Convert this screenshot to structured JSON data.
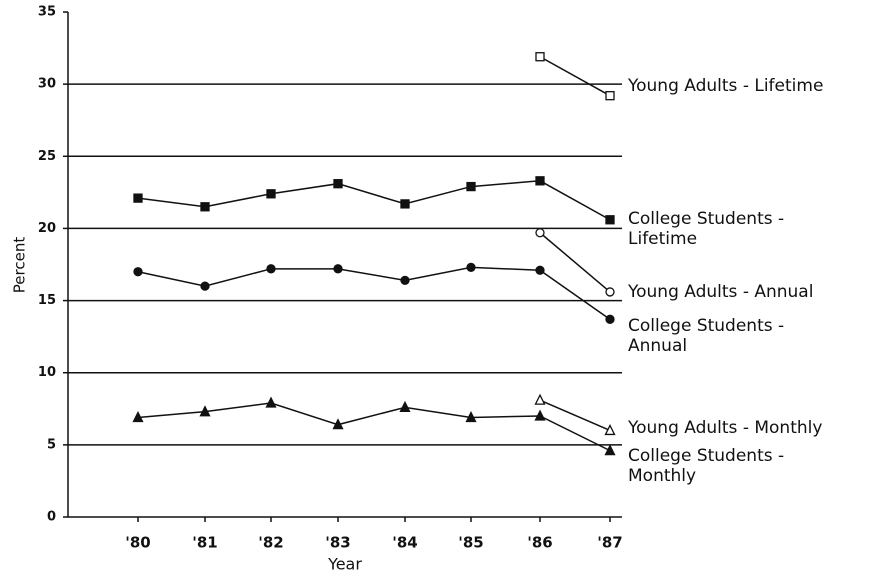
{
  "chart_data": {
    "type": "line",
    "x_label": "Year",
    "y_label": "Percent",
    "categories": [
      "'80",
      "'81",
      "'82",
      "'83",
      "'84",
      "'85",
      "'86",
      "'87"
    ],
    "series": [
      {
        "name": "Young Adults - Lifetime",
        "color": "#111111",
        "marker": "square-open",
        "values": [
          null,
          null,
          null,
          null,
          null,
          null,
          31.9,
          29.2
        ]
      },
      {
        "name": "College Students - Lifetime",
        "color": "#111111",
        "marker": "square-filled",
        "values": [
          22.1,
          21.5,
          22.4,
          23.1,
          21.7,
          22.9,
          23.3,
          20.6
        ]
      },
      {
        "name": "Young Adults - Annual",
        "color": "#111111",
        "marker": "circle-open",
        "values": [
          null,
          null,
          null,
          null,
          null,
          null,
          19.7,
          15.6
        ]
      },
      {
        "name": "College Students - Annual",
        "color": "#111111",
        "marker": "circle-filled",
        "values": [
          17.0,
          16.0,
          17.2,
          17.2,
          16.4,
          17.3,
          17.1,
          13.7
        ]
      },
      {
        "name": "Young Adults - Monthly",
        "color": "#111111",
        "marker": "triangle-open",
        "values": [
          null,
          null,
          null,
          null,
          null,
          null,
          8.1,
          6.0
        ]
      },
      {
        "name": "College Students - Monthly",
        "color": "#111111",
        "marker": "triangle-filled",
        "values": [
          6.9,
          7.3,
          7.9,
          6.4,
          7.6,
          6.9,
          7.0,
          4.6
        ]
      }
    ],
    "ylim": [
      0,
      35
    ],
    "yticks": [
      0,
      5,
      10,
      15,
      20,
      25,
      30,
      35
    ],
    "grid": true
  }
}
